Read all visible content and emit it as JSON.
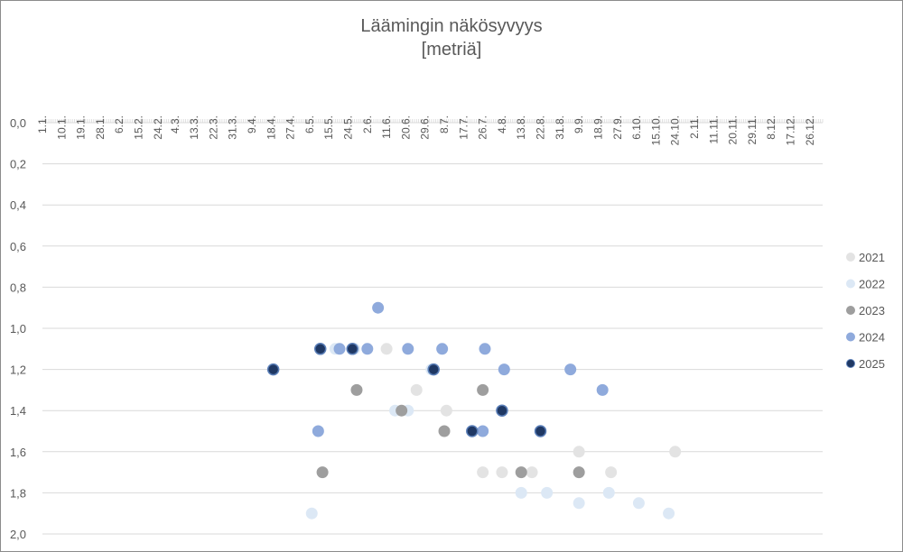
{
  "chart_data": {
    "type": "scatter",
    "title": "Läämingin näkösyvyys",
    "subtitle": "[metriä]",
    "xlabel": "",
    "ylabel": "",
    "ylim": [
      0,
      2
    ],
    "y_reversed": true,
    "y_tick_labels": [
      "0,0",
      "0,2",
      "0,4",
      "0,6",
      "0,8",
      "1,0",
      "1,2",
      "1,4",
      "1,6",
      "1,8",
      "2,0"
    ],
    "x_axis": "day of year, ticks every 9 days",
    "x_tick_labels": [
      "1.1.",
      "10.1.",
      "19.1.",
      "28.1.",
      "6.2.",
      "15.2.",
      "24.2.",
      "4.3.",
      "13.3.",
      "22.3.",
      "31.3.",
      "9.4.",
      "18.4.",
      "27.4.",
      "6.5.",
      "15.5.",
      "24.5.",
      "2.6.",
      "11.6.",
      "20.6.",
      "29.6.",
      "8.7.",
      "17.7.",
      "26.7.",
      "4.8.",
      "13.8.",
      "22.8.",
      "31.8.",
      "9.9.",
      "18.9.",
      "27.9.",
      "6.10.",
      "15.10.",
      "24.10.",
      "2.11.",
      "11.11.",
      "20.11.",
      "29.11.",
      "8.12.",
      "17.12.",
      "26.12."
    ],
    "grid": "horizontal",
    "legend_position": "right",
    "series": [
      {
        "name": "2021",
        "color": "#e3e3e3",
        "marker_stroke": "#e3e3e3",
        "points": [
          [
            "11.6.",
            1.1
          ],
          [
            "25.6.",
            1.3
          ],
          [
            "9.7.",
            1.4
          ],
          [
            "26.7.",
            1.7
          ],
          [
            "4.8.",
            1.7
          ],
          [
            "18.8.",
            1.7
          ],
          [
            "9.9.",
            1.6
          ],
          [
            "9.9.",
            1.7
          ],
          [
            "24.9.",
            1.7
          ],
          [
            "24.10.",
            1.6
          ]
        ]
      },
      {
        "name": "2022",
        "color": "#dce8f5",
        "marker_stroke": "#dce8f5",
        "points": [
          [
            "7.5.",
            1.9
          ],
          [
            "18.5.",
            1.1
          ],
          [
            "27.5.",
            1.1
          ],
          [
            "15.6.",
            1.4
          ],
          [
            "21.6.",
            1.4
          ],
          [
            "2.7.",
            1.2
          ],
          [
            "26.7.",
            1.5
          ],
          [
            "13.8.",
            1.8
          ],
          [
            "25.8.",
            1.8
          ],
          [
            "9.9.",
            1.85
          ],
          [
            "23.9.",
            1.8
          ],
          [
            "7.10.",
            1.85
          ],
          [
            "21.10.",
            1.9
          ]
        ]
      },
      {
        "name": "2023",
        "color": "#9e9e9e",
        "marker_stroke": "#9e9e9e",
        "points": [
          [
            "12.5.",
            1.7
          ],
          [
            "28.5.",
            1.3
          ],
          [
            "18.6.",
            1.4
          ],
          [
            "8.7.",
            1.5
          ],
          [
            "26.7.",
            1.3
          ],
          [
            "13.8.",
            1.7
          ],
          [
            "9.9.",
            1.7
          ]
        ]
      },
      {
        "name": "2024",
        "color": "#8faadc",
        "marker_stroke": "#8faadc",
        "points": [
          [
            "7.6.",
            0.9
          ],
          [
            "20.5.",
            1.1
          ],
          [
            "2.6.",
            1.1
          ],
          [
            "21.6.",
            1.1
          ],
          [
            "7.7.",
            1.1
          ],
          [
            "27.7.",
            1.1
          ],
          [
            "10.5.",
            1.5
          ],
          [
            "26.7.",
            1.5
          ],
          [
            "5.8.",
            1.2
          ],
          [
            "5.9.",
            1.2
          ],
          [
            "20.9.",
            1.3
          ],
          [
            "4.8.",
            1.4
          ],
          [
            "22.8.",
            1.5
          ],
          [
            "3.7.",
            1.2
          ]
        ]
      },
      {
        "name": "2025",
        "color": "#1f3864",
        "marker_stroke": "#1f3864",
        "points": [
          [
            "19.4.",
            1.2
          ],
          [
            "11.5.",
            1.1
          ],
          [
            "26.5.",
            1.1
          ],
          [
            "3.7.",
            1.2
          ],
          [
            "21.7.",
            1.5
          ],
          [
            "4.8.",
            1.4
          ],
          [
            "22.8.",
            1.5
          ]
        ]
      }
    ]
  }
}
